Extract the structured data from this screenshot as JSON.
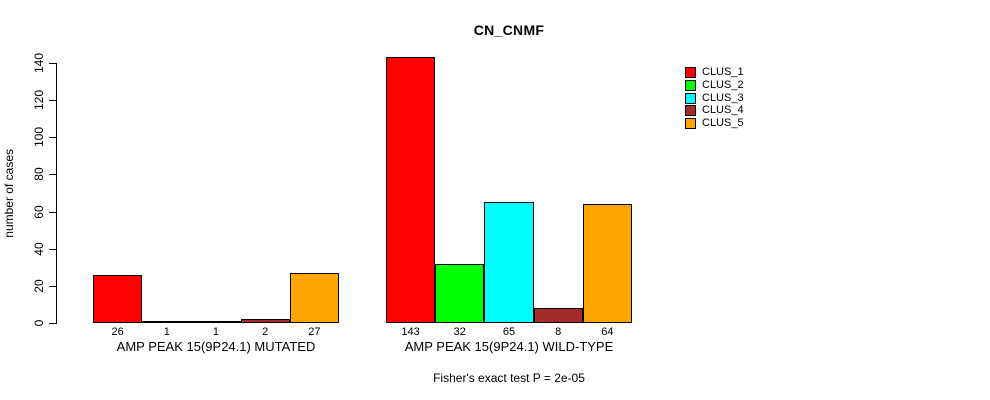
{
  "chart_data": {
    "type": "bar",
    "title": "CN_CNMF",
    "ylabel": "number of cases",
    "xlabel": "",
    "ylim": [
      0,
      140
    ],
    "yticks": [
      0,
      20,
      40,
      60,
      80,
      100,
      120,
      140
    ],
    "grid": false,
    "legend_position": "right",
    "categories": [
      "AMP PEAK 15(9P24.1) MUTATED",
      "AMP PEAK 15(9P24.1) WILD-TYPE"
    ],
    "series": [
      {
        "name": "CLUS_1",
        "color": "#FF0000",
        "values": [
          26,
          143
        ]
      },
      {
        "name": "CLUS_2",
        "color": "#00FF00",
        "values": [
          1,
          32
        ]
      },
      {
        "name": "CLUS_3",
        "color": "#00FFFF",
        "values": [
          1,
          65
        ]
      },
      {
        "name": "CLUS_4",
        "color": "#A52A2A",
        "values": [
          2,
          8
        ]
      },
      {
        "name": "CLUS_5",
        "color": "#FFA500",
        "values": [
          27,
          64
        ]
      }
    ],
    "bar_value_labels": [
      [
        "26",
        "1",
        "1",
        "2",
        "27"
      ],
      [
        "143",
        "32",
        "65",
        "8",
        "64"
      ]
    ],
    "annotation": "Fisher's exact test P = 2e-05"
  },
  "colors": {
    "axis": "#000000",
    "background": "#FFFFFF",
    "text": "#000000"
  }
}
